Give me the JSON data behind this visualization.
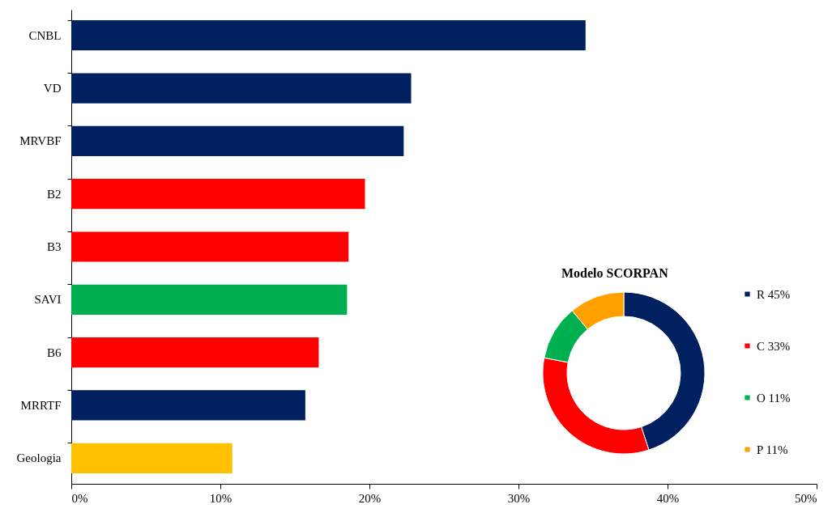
{
  "chart_data": [
    {
      "type": "bar",
      "orientation": "horizontal",
      "categories": [
        "CNBL",
        "VD",
        "MRVBF",
        "B2",
        "B3",
        "SAVI",
        "B6",
        "MRRTF",
        "Geologia"
      ],
      "values": [
        34.5,
        22.8,
        22.3,
        19.7,
        18.6,
        18.5,
        16.6,
        15.7,
        10.8
      ],
      "colors": [
        "#002060",
        "#002060",
        "#002060",
        "#ff0000",
        "#ff0000",
        "#00b050",
        "#ff0000",
        "#002060",
        "#ffc000"
      ],
      "xlim": [
        0,
        50
      ],
      "xticks": [
        {
          "value": 0,
          "label": "0%"
        },
        {
          "value": 10,
          "label": "10%"
        },
        {
          "value": 20,
          "label": "20%"
        },
        {
          "value": 30,
          "label": "30%"
        },
        {
          "value": 40,
          "label": "40%"
        },
        {
          "value": 50,
          "label": "50%"
        }
      ],
      "grid": false
    },
    {
      "type": "donut",
      "title": "Modelo SCORPAN",
      "categories": [
        "R",
        "C",
        "O",
        "P"
      ],
      "values": [
        45,
        33,
        11,
        11
      ],
      "value_labels": [
        "45%",
        "33%",
        "11%",
        "11%"
      ],
      "colors": [
        "#002060",
        "#ff0000",
        "#00b050",
        "#ffa000"
      ],
      "legend": "right"
    }
  ]
}
